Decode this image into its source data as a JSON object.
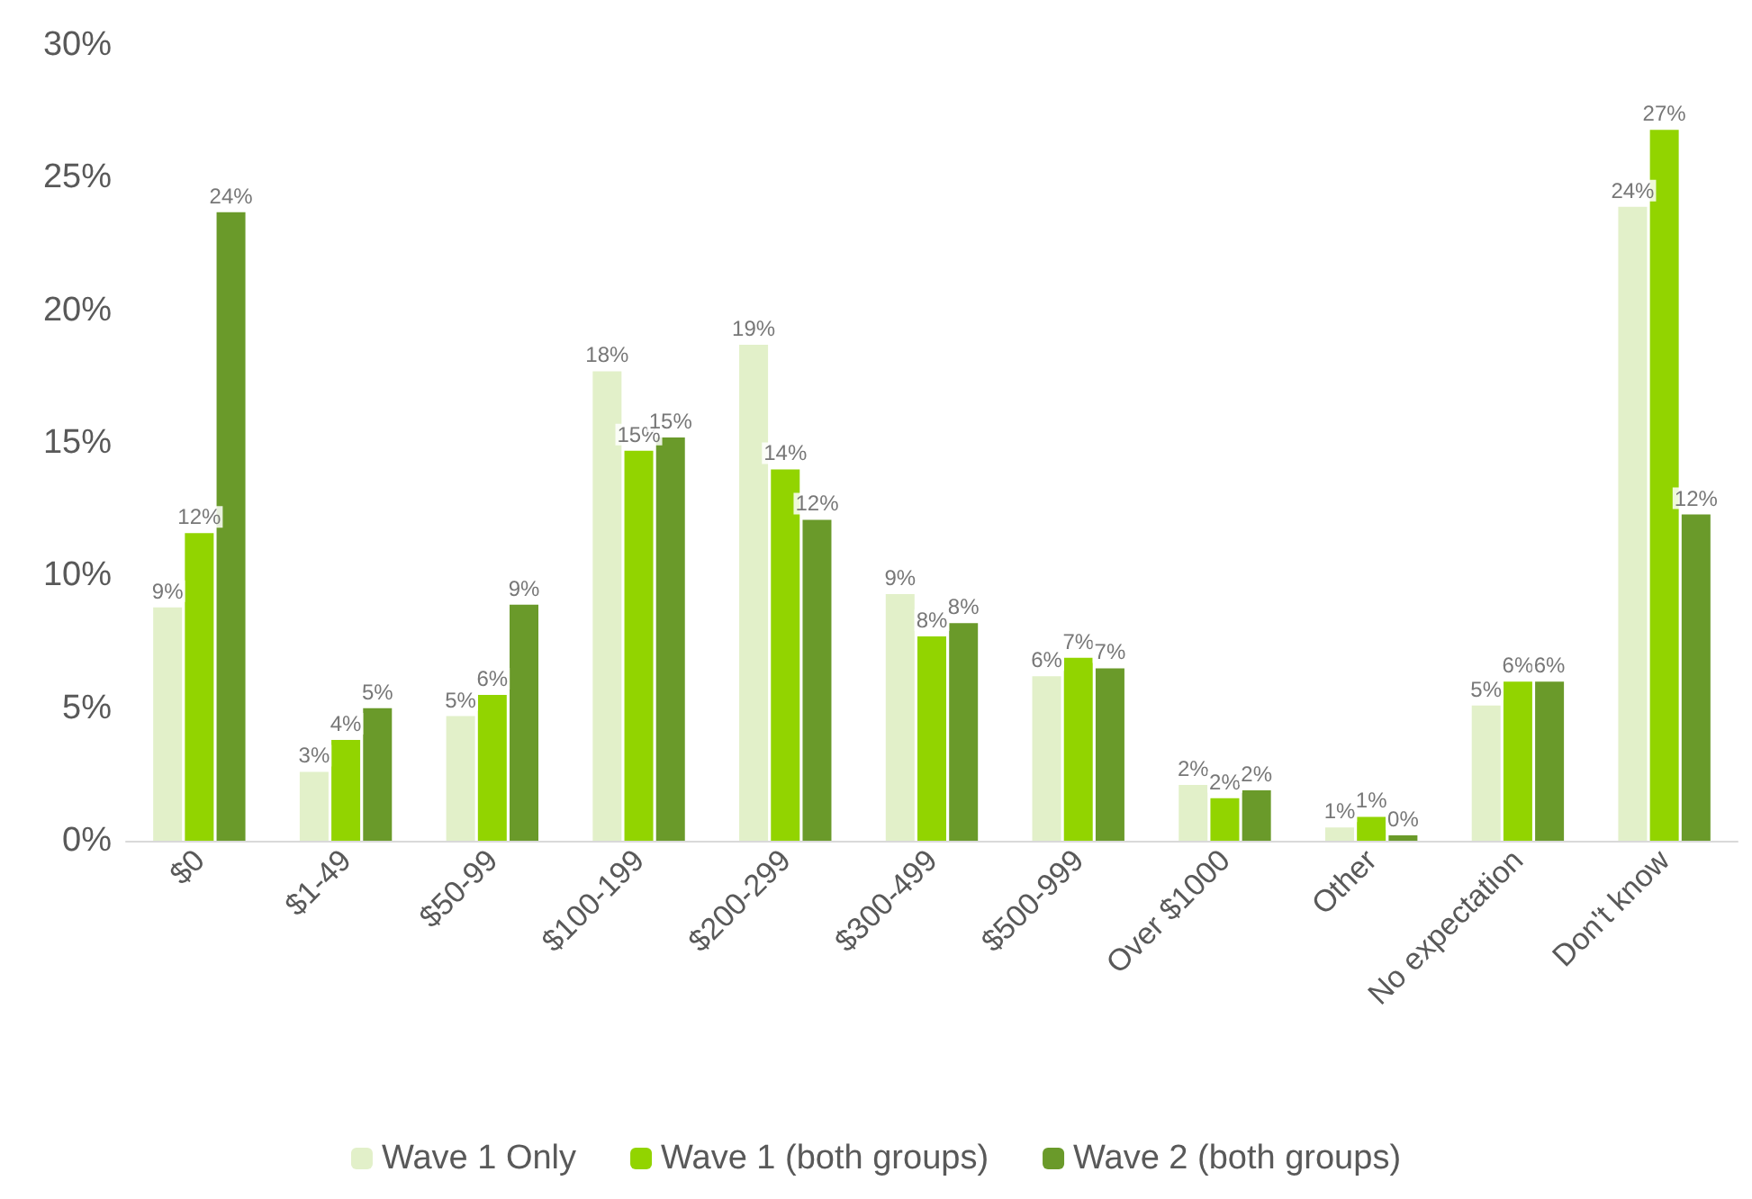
{
  "chart_data": {
    "type": "bar",
    "categories": [
      "$0",
      "$1-49",
      "$50-99",
      "$100-199",
      "$200-299",
      "$300-499",
      "$500-999",
      "Over $1000",
      "Other",
      "No expectation",
      "Don't know"
    ],
    "series": [
      {
        "name": "Wave 1 Only",
        "color": "#e2f0c9",
        "values": [
          8.8,
          2.6,
          4.7,
          17.7,
          18.7,
          9.3,
          6.2,
          2.1,
          0.5,
          5.1,
          23.9
        ],
        "value_labels": [
          "9%",
          "3%",
          "5%",
          "18%",
          "19%",
          "9%",
          "6%",
          "2%",
          "1%",
          "5%",
          "24%"
        ]
      },
      {
        "name": "Wave 1 (both groups)",
        "color": "#92d400",
        "values": [
          11.6,
          3.8,
          5.5,
          14.7,
          14.0,
          7.7,
          6.9,
          1.6,
          0.9,
          6.0,
          26.8
        ],
        "value_labels": [
          "12%",
          "4%",
          "6%",
          "15%",
          "14%",
          "8%",
          "7%",
          "2%",
          "1%",
          "6%",
          "27%"
        ]
      },
      {
        "name": "Wave 2 (both groups)",
        "color": "#6a9a2a",
        "values": [
          23.7,
          5.0,
          8.9,
          15.2,
          12.1,
          8.2,
          6.5,
          1.9,
          0.2,
          6.0,
          12.3
        ],
        "value_labels": [
          "24%",
          "5%",
          "9%",
          "15%",
          "12%",
          "8%",
          "7%",
          "2%",
          "0%",
          "6%",
          "12%"
        ]
      }
    ],
    "ylim": [
      0,
      30
    ],
    "yticks": [
      {
        "value": 0,
        "label": "0%"
      },
      {
        "value": 5,
        "label": "5%"
      },
      {
        "value": 10,
        "label": "10%"
      },
      {
        "value": 15,
        "label": "15%"
      },
      {
        "value": 20,
        "label": "20%"
      },
      {
        "value": 25,
        "label": "25%"
      },
      {
        "value": 30,
        "label": "30%"
      }
    ],
    "grid": false,
    "legend": "bottom"
  }
}
